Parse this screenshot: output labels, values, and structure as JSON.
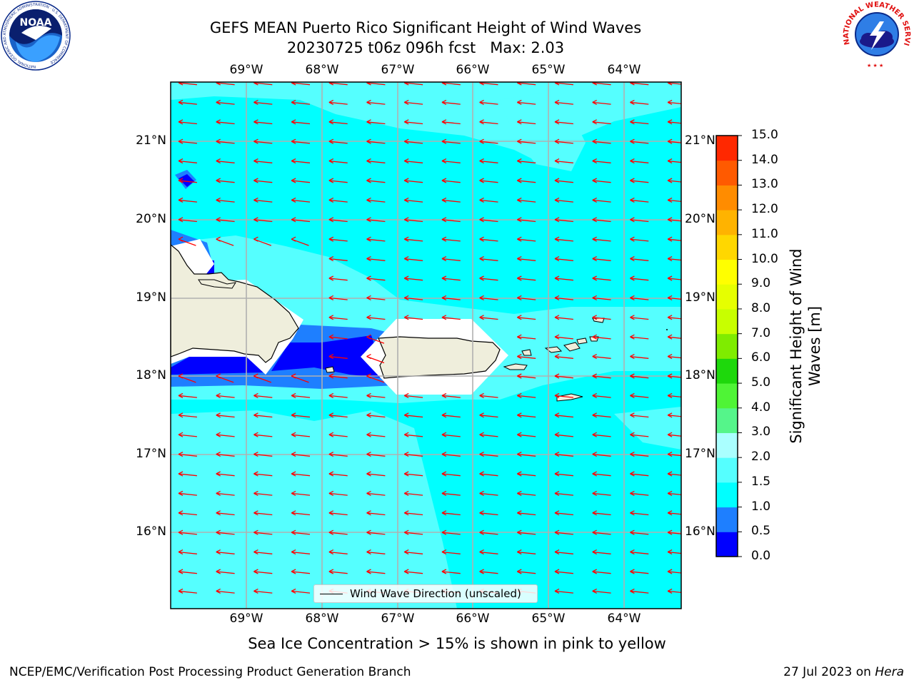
{
  "title_line1": "GEFS MEAN Puerto Rico Significant Height of Wind Waves",
  "title_line2": "20230725 t06z 096h fcst   Max: 2.03",
  "lon_ticks": [
    "69°W",
    "68°W",
    "67°W",
    "66°W",
    "65°W",
    "64°W"
  ],
  "lat_ticks": [
    "21°N",
    "20°N",
    "19°N",
    "18°N",
    "17°N",
    "16°N"
  ],
  "colorbar": {
    "label": "Significant Height of Wind Waves [m]",
    "ticks": [
      "0.0",
      "0.5",
      "1.0",
      "1.5",
      "2.0",
      "3.0",
      "4.0",
      "5.0",
      "6.0",
      "7.0",
      "8.0",
      "9.0",
      "10.0",
      "11.0",
      "12.0",
      "13.0",
      "14.0",
      "15.0"
    ],
    "colors": [
      "#0000ff",
      "#1e7fff",
      "#00ffff",
      "#55ffff",
      "#aaffff",
      "#55f58a",
      "#4ff436",
      "#1ed80c",
      "#7fec00",
      "#c8ff00",
      "#e6ff00",
      "#ffff00",
      "#ffd700",
      "#ffb300",
      "#ff8c00",
      "#ff5a00",
      "#ff2800"
    ]
  },
  "legend_label": "Wind Wave Direction (unscaled)",
  "footer_note": "Sea Ice Concentration > 15% is shown in pink to yellow",
  "footer_left": "NCEP/EMC/Verification Post Processing Product Generation Branch",
  "footer_right_prefix": "27 Jul 2023 on ",
  "footer_right_host": "Hera",
  "logos": {
    "noaa": "NOAA",
    "noaa_ring": "NATIONAL OCEANIC AND ATMOSPHERIC ADMINISTRATION · U.S. DEPARTMENT OF COMMERCE",
    "nws_ring": "NATIONAL WEATHER SERVICE"
  },
  "colors": {
    "ocean_main": "#00ffff",
    "ocean_light": "#55ffff",
    "ocean_mid": "#1e7fff",
    "ocean_deep": "#0000ff",
    "land": "#efeedc",
    "arrow": "#ff0000",
    "grid": "#b0b0b0"
  }
}
